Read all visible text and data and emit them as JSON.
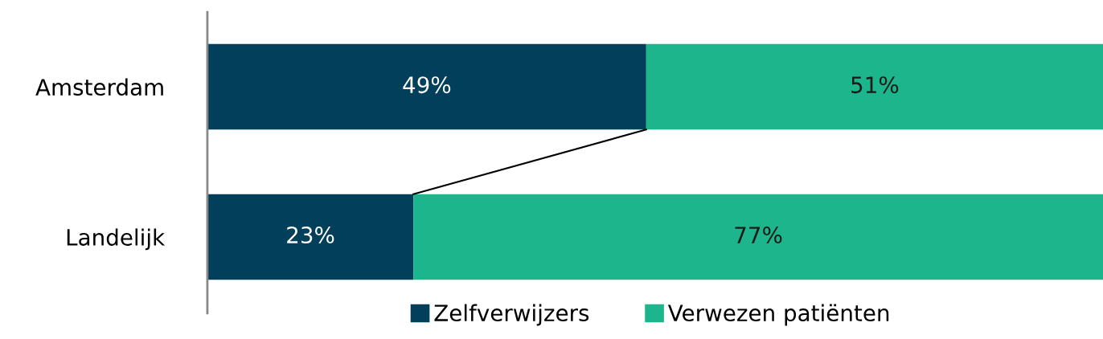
{
  "chart_data": {
    "type": "bar",
    "orientation": "horizontal",
    "stacked": true,
    "categories": [
      "Amsterdam",
      "Landelijk"
    ],
    "series": [
      {
        "name": "Zelfverwijzers",
        "color": "#023f5a",
        "values": [
          49,
          23
        ],
        "value_labels": [
          "49%",
          "23%"
        ]
      },
      {
        "name": "Verwezen patiënten",
        "color": "#1db68c",
        "values": [
          51,
          77
        ],
        "value_labels": [
          "51%",
          "77%"
        ]
      }
    ],
    "legend": "bottom",
    "grid": false,
    "tick_labels": "y"
  }
}
